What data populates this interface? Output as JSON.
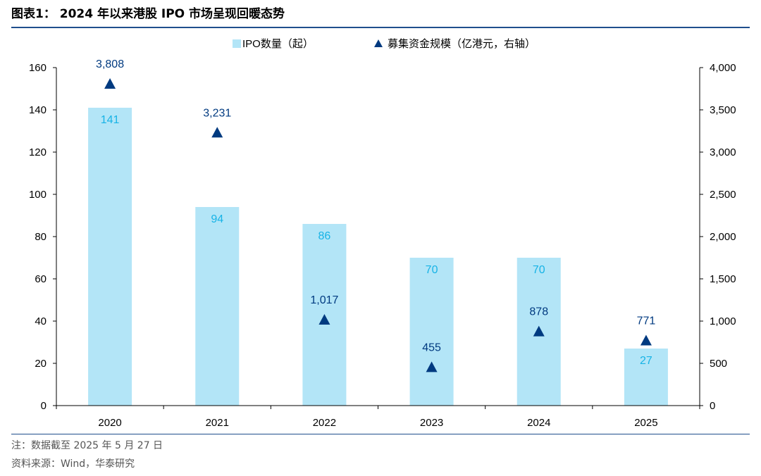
{
  "header": {
    "title": "图表1： 2024 年以来港股 IPO 市场呈现回暖态势"
  },
  "footer": {
    "note": "注：数据截至 2025 年 5 月 27 日",
    "source": "资料来源：Wind，华泰研究"
  },
  "colors": {
    "bar": "#b3e5f7",
    "bar_label": "#17b3e6",
    "marker": "#003a80",
    "marker_label": "#003a80",
    "rule": "#1f4e8c"
  },
  "chart_data": {
    "type": "bar",
    "categories": [
      "2020",
      "2021",
      "2022",
      "2023",
      "2024",
      "2025"
    ],
    "series": [
      {
        "name": "IPO数量（起）",
        "type": "bar",
        "axis": "left",
        "values": [
          141,
          94,
          86,
          70,
          70,
          27
        ],
        "labels": [
          "141",
          "94",
          "86",
          "70",
          "70",
          "27"
        ]
      },
      {
        "name": "募集资金规模（亿港元，右轴）",
        "type": "scatter",
        "marker": "triangle",
        "axis": "right",
        "values": [
          3808,
          3231,
          1017,
          455,
          878,
          771
        ],
        "labels": [
          "3,808",
          "3,231",
          "1,017",
          "455",
          "878",
          "771"
        ]
      }
    ],
    "ylim": [
      0,
      160
    ],
    "y2lim": [
      0,
      4000
    ],
    "yticks": [
      "0",
      "20",
      "40",
      "60",
      "80",
      "100",
      "120",
      "140",
      "160"
    ],
    "y2ticks": [
      "0",
      "500",
      "1,000",
      "1,500",
      "2,000",
      "2,500",
      "3,000",
      "3,500",
      "4,000"
    ],
    "legend": {
      "position": "top-center"
    },
    "grid": false
  }
}
